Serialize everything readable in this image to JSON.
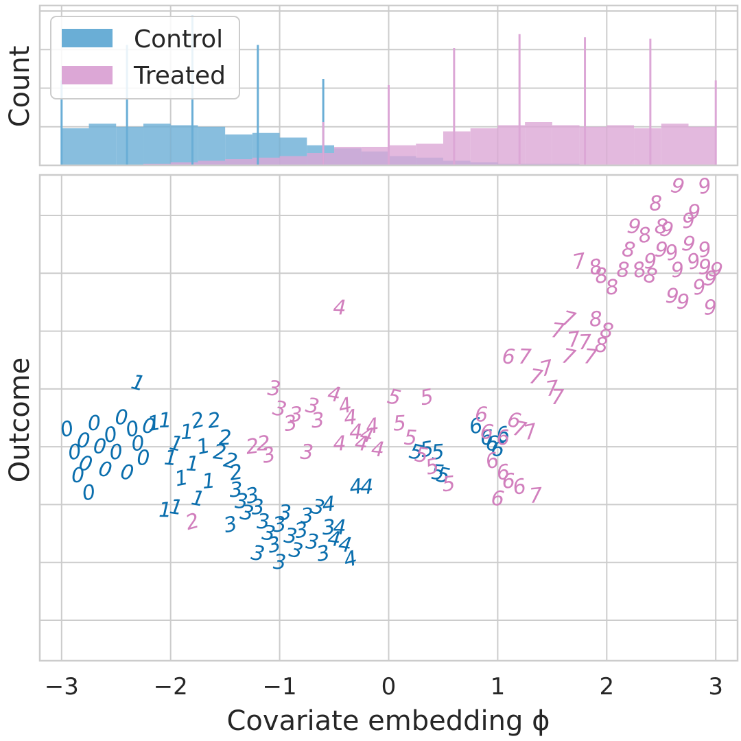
{
  "chart_data": [
    {
      "type": "histogram",
      "panel": "top",
      "ylabel": "Count",
      "xlim": [
        -3.2,
        3.2
      ],
      "legend": {
        "placement": "top-left",
        "entries": [
          "Control",
          "Treated"
        ]
      },
      "colors": {
        "Control": "#6aaed6",
        "Treated": "#dca7d6"
      },
      "bin_centers": [
        -2.875,
        -2.625,
        -2.375,
        -2.125,
        -1.875,
        -1.625,
        -1.375,
        -1.125,
        -0.875,
        -0.625,
        -0.375,
        -0.125,
        0.125,
        0.375,
        0.625,
        0.875,
        1.125,
        1.375,
        1.625,
        1.875,
        2.125,
        2.375,
        2.625,
        2.875
      ],
      "series": [
        {
          "name": "Control",
          "values": [
            0.24,
            0.27,
            0.25,
            0.27,
            0.26,
            0.25,
            0.2,
            0.21,
            0.18,
            0.13,
            0.11,
            0.09,
            0.06,
            0.05,
            0.03,
            0.02,
            0.01,
            0.01,
            0.01,
            0.0,
            0.0,
            0.0,
            0.0,
            0.0
          ]
        },
        {
          "name": "Treated",
          "values": [
            0.0,
            0.0,
            0.0,
            0.01,
            0.02,
            0.03,
            0.04,
            0.05,
            0.06,
            0.08,
            0.12,
            0.12,
            0.13,
            0.14,
            0.22,
            0.24,
            0.26,
            0.28,
            0.26,
            0.25,
            0.26,
            0.24,
            0.27,
            0.25
          ]
        }
      ],
      "spikes": {
        "Control": {
          "x": [
            -3.0,
            -2.4,
            -1.8,
            -1.2,
            -0.6,
            0.0
          ],
          "values": [
            0.55,
            0.78,
            0.97,
            0.78,
            0.56,
            0.3
          ]
        },
        "Treated": {
          "x": [
            -0.6,
            0.0,
            0.6,
            1.2,
            1.8,
            2.4,
            3.0
          ],
          "values": [
            0.28,
            0.52,
            0.76,
            0.85,
            0.83,
            0.82,
            0.55
          ]
        }
      },
      "ylim": [
        0,
        1
      ]
    },
    {
      "type": "scatter",
      "panel": "bottom",
      "xlabel": "Covariate embedding ϕ",
      "ylabel": "Outcome",
      "xlim": [
        -3.2,
        3.2
      ],
      "ylim": [
        -4.7,
        3.7
      ],
      "xticks": [
        -3,
        -2,
        -1,
        0,
        1,
        2,
        3
      ],
      "xtick_labels": [
        "−3",
        "−2",
        "−1",
        "0",
        "1",
        "2",
        "3"
      ],
      "y_gridlines": [
        -4,
        -3,
        -2,
        -1,
        0,
        1,
        2,
        3
      ],
      "grid": true,
      "marker": "handwritten digit",
      "series": [
        {
          "name": "Control",
          "color": "#0a6ead",
          "points": [
            [
              -2.95,
              -0.7,
              "0"
            ],
            [
              -2.88,
              -1.1,
              "0"
            ],
            [
              -2.85,
              -1.5,
              "0"
            ],
            [
              -2.8,
              -0.9,
              "0"
            ],
            [
              -2.78,
              -1.3,
              "0"
            ],
            [
              -2.75,
              -1.8,
              "0"
            ],
            [
              -2.7,
              -0.6,
              "0"
            ],
            [
              -2.65,
              -1.0,
              "0"
            ],
            [
              -2.6,
              -1.4,
              "0"
            ],
            [
              -2.55,
              -0.8,
              "0"
            ],
            [
              -2.5,
              -1.1,
              "0"
            ],
            [
              -2.45,
              -0.5,
              "0"
            ],
            [
              -2.4,
              -1.45,
              "0"
            ],
            [
              -2.35,
              -0.7,
              "0"
            ],
            [
              -2.3,
              -0.95,
              "0"
            ],
            [
              -2.25,
              -1.2,
              "0"
            ],
            [
              -2.2,
              -0.65,
              "0"
            ],
            [
              -2.3,
              0.1,
              "1"
            ],
            [
              -2.15,
              -0.6,
              "1"
            ],
            [
              -2.05,
              -0.55,
              "1"
            ],
            [
              -2.0,
              -1.2,
              "1"
            ],
            [
              -1.95,
              -0.95,
              "1"
            ],
            [
              -1.9,
              -1.55,
              "1"
            ],
            [
              -1.85,
              -0.75,
              "1"
            ],
            [
              -1.8,
              -1.3,
              "1"
            ],
            [
              -1.75,
              -1.9,
              "1"
            ],
            [
              -1.7,
              -1.0,
              "1"
            ],
            [
              -1.65,
              -1.6,
              "1"
            ],
            [
              -2.05,
              -2.1,
              "1"
            ],
            [
              -1.95,
              -2.05,
              "1"
            ],
            [
              -1.75,
              -0.55,
              "2"
            ],
            [
              -1.6,
              -0.55,
              "2"
            ],
            [
              -1.5,
              -0.85,
              "2"
            ],
            [
              -1.55,
              -1.1,
              "2"
            ],
            [
              -1.45,
              -1.25,
              "2"
            ],
            [
              -1.4,
              -1.45,
              "2"
            ],
            [
              -1.4,
              -1.75,
              "3"
            ],
            [
              -1.35,
              -1.95,
              "3"
            ],
            [
              -1.3,
              -2.15,
              "3"
            ],
            [
              -1.25,
              -1.85,
              "3"
            ],
            [
              -1.2,
              -2.05,
              "3"
            ],
            [
              -1.15,
              -2.3,
              "3"
            ],
            [
              -1.1,
              -2.5,
              "3"
            ],
            [
              -1.05,
              -2.7,
              "3"
            ],
            [
              -1.0,
              -2.35,
              "3"
            ],
            [
              -0.95,
              -2.15,
              "3"
            ],
            [
              -0.9,
              -2.55,
              "3"
            ],
            [
              -0.85,
              -2.8,
              "3"
            ],
            [
              -0.8,
              -2.45,
              "3"
            ],
            [
              -0.75,
              -2.2,
              "3"
            ],
            [
              -0.7,
              -2.65,
              "3"
            ],
            [
              -0.65,
              -2.05,
              "3"
            ],
            [
              -0.6,
              -2.85,
              "3"
            ],
            [
              -0.55,
              -2.4,
              "3"
            ],
            [
              -1.0,
              -3.0,
              "3"
            ],
            [
              -1.2,
              -2.85,
              "3"
            ],
            [
              -1.45,
              -2.35,
              "3"
            ],
            [
              -0.55,
              -2.0,
              "4"
            ],
            [
              -0.45,
              -2.4,
              "4"
            ],
            [
              -0.4,
              -2.7,
              "4"
            ],
            [
              -0.35,
              -2.95,
              "4"
            ],
            [
              -0.3,
              -1.7,
              "4"
            ],
            [
              -0.2,
              -1.7,
              "4"
            ],
            [
              -0.5,
              -2.6,
              "4"
            ],
            [
              0.25,
              -1.1,
              "5"
            ],
            [
              0.35,
              -1.05,
              "5"
            ],
            [
              0.45,
              -1.1,
              "5"
            ],
            [
              0.45,
              -1.45,
              "5"
            ],
            [
              0.5,
              -1.5,
              "5"
            ],
            [
              0.8,
              -0.65,
              "6"
            ],
            [
              0.9,
              -0.85,
              "6"
            ],
            [
              0.95,
              -0.95,
              "6"
            ],
            [
              1.0,
              -1.05,
              "6"
            ],
            [
              1.05,
              -0.8,
              "6"
            ]
          ]
        },
        {
          "name": "Treated",
          "color": "#d17fbd",
          "points": [
            [
              -1.8,
              -2.3,
              "2"
            ],
            [
              -1.25,
              -1.0,
              "2"
            ],
            [
              -1.15,
              -0.95,
              "2"
            ],
            [
              -1.05,
              0.0,
              "3"
            ],
            [
              -1.0,
              -0.35,
              "3"
            ],
            [
              -0.9,
              -0.6,
              "3"
            ],
            [
              -0.85,
              -0.45,
              "3"
            ],
            [
              -0.75,
              -1.1,
              "3"
            ],
            [
              -0.7,
              -0.3,
              "3"
            ],
            [
              -1.1,
              -1.15,
              "3"
            ],
            [
              -0.65,
              -0.55,
              "3"
            ],
            [
              -0.45,
              1.4,
              "4"
            ],
            [
              -0.5,
              -0.1,
              "4"
            ],
            [
              -0.4,
              -0.3,
              "4"
            ],
            [
              -0.35,
              -0.5,
              "4"
            ],
            [
              -0.3,
              -0.75,
              "4"
            ],
            [
              -0.25,
              -0.95,
              "4"
            ],
            [
              -0.2,
              -0.8,
              "4"
            ],
            [
              -0.15,
              -0.65,
              "4"
            ],
            [
              -0.45,
              -0.95,
              "4"
            ],
            [
              -0.1,
              -1.05,
              "4"
            ],
            [
              0.05,
              -0.15,
              "5"
            ],
            [
              0.35,
              -0.15,
              "5"
            ],
            [
              0.1,
              -0.6,
              "5"
            ],
            [
              0.2,
              -0.85,
              "5"
            ],
            [
              0.3,
              -1.15,
              "5"
            ],
            [
              0.4,
              -1.35,
              "5"
            ],
            [
              0.55,
              -1.65,
              "5"
            ],
            [
              0.85,
              -0.45,
              "6"
            ],
            [
              0.9,
              -0.75,
              "6"
            ],
            [
              0.95,
              -1.25,
              "6"
            ],
            [
              1.05,
              -1.45,
              "6"
            ],
            [
              1.1,
              -1.6,
              "6"
            ],
            [
              1.0,
              -1.9,
              "6"
            ],
            [
              1.15,
              -0.55,
              "6"
            ],
            [
              1.2,
              -1.7,
              "6"
            ],
            [
              1.05,
              -0.85,
              "6"
            ],
            [
              1.1,
              0.55,
              "6"
            ],
            [
              1.2,
              -0.7,
              "7"
            ],
            [
              1.3,
              -0.75,
              "7"
            ],
            [
              1.35,
              -1.85,
              "7"
            ],
            [
              1.25,
              0.55,
              "7"
            ],
            [
              1.35,
              0.2,
              "7"
            ],
            [
              1.45,
              0.35,
              "7"
            ],
            [
              1.5,
              0.0,
              "7"
            ],
            [
              1.55,
              -0.15,
              "7"
            ],
            [
              1.55,
              1.0,
              "7"
            ],
            [
              1.65,
              1.2,
              "7"
            ],
            [
              1.7,
              0.85,
              "7"
            ],
            [
              1.8,
              0.8,
              "7"
            ],
            [
              1.85,
              0.55,
              "7"
            ],
            [
              1.65,
              0.55,
              "7"
            ],
            [
              1.75,
              2.2,
              "7"
            ],
            [
              1.9,
              1.2,
              "8"
            ],
            [
              1.95,
              0.75,
              "8"
            ],
            [
              2.0,
              1.0,
              "8"
            ],
            [
              1.9,
              2.1,
              "8"
            ],
            [
              2.05,
              1.75,
              "8"
            ],
            [
              2.15,
              2.05,
              "8"
            ],
            [
              2.2,
              2.4,
              "8"
            ],
            [
              2.3,
              2.05,
              "8"
            ],
            [
              2.35,
              2.65,
              "8"
            ],
            [
              2.45,
              3.2,
              "8"
            ],
            [
              2.5,
              2.8,
              "8"
            ],
            [
              2.4,
              1.95,
              "8"
            ],
            [
              1.95,
              1.95,
              "8"
            ],
            [
              2.4,
              2.2,
              "9"
            ],
            [
              2.5,
              2.4,
              "9"
            ],
            [
              2.55,
              2.75,
              "9"
            ],
            [
              2.6,
              2.35,
              "9"
            ],
            [
              2.65,
              2.05,
              "9"
            ],
            [
              2.7,
              1.5,
              "9"
            ],
            [
              2.75,
              2.5,
              "9"
            ],
            [
              2.8,
              2.2,
              "9"
            ],
            [
              2.85,
              1.75,
              "9"
            ],
            [
              2.9,
              2.1,
              "9"
            ],
            [
              2.95,
              1.9,
              "9"
            ],
            [
              3.0,
              2.05,
              "9"
            ],
            [
              2.9,
              2.4,
              "9"
            ],
            [
              2.95,
              1.4,
              "9"
            ],
            [
              2.6,
              1.6,
              "9"
            ],
            [
              2.65,
              3.5,
              "9"
            ],
            [
              2.9,
              3.5,
              "9"
            ],
            [
              2.75,
              2.9,
              "9"
            ],
            [
              2.8,
              3.05,
              "9"
            ],
            [
              2.25,
              2.8,
              "9"
            ]
          ]
        }
      ]
    }
  ]
}
